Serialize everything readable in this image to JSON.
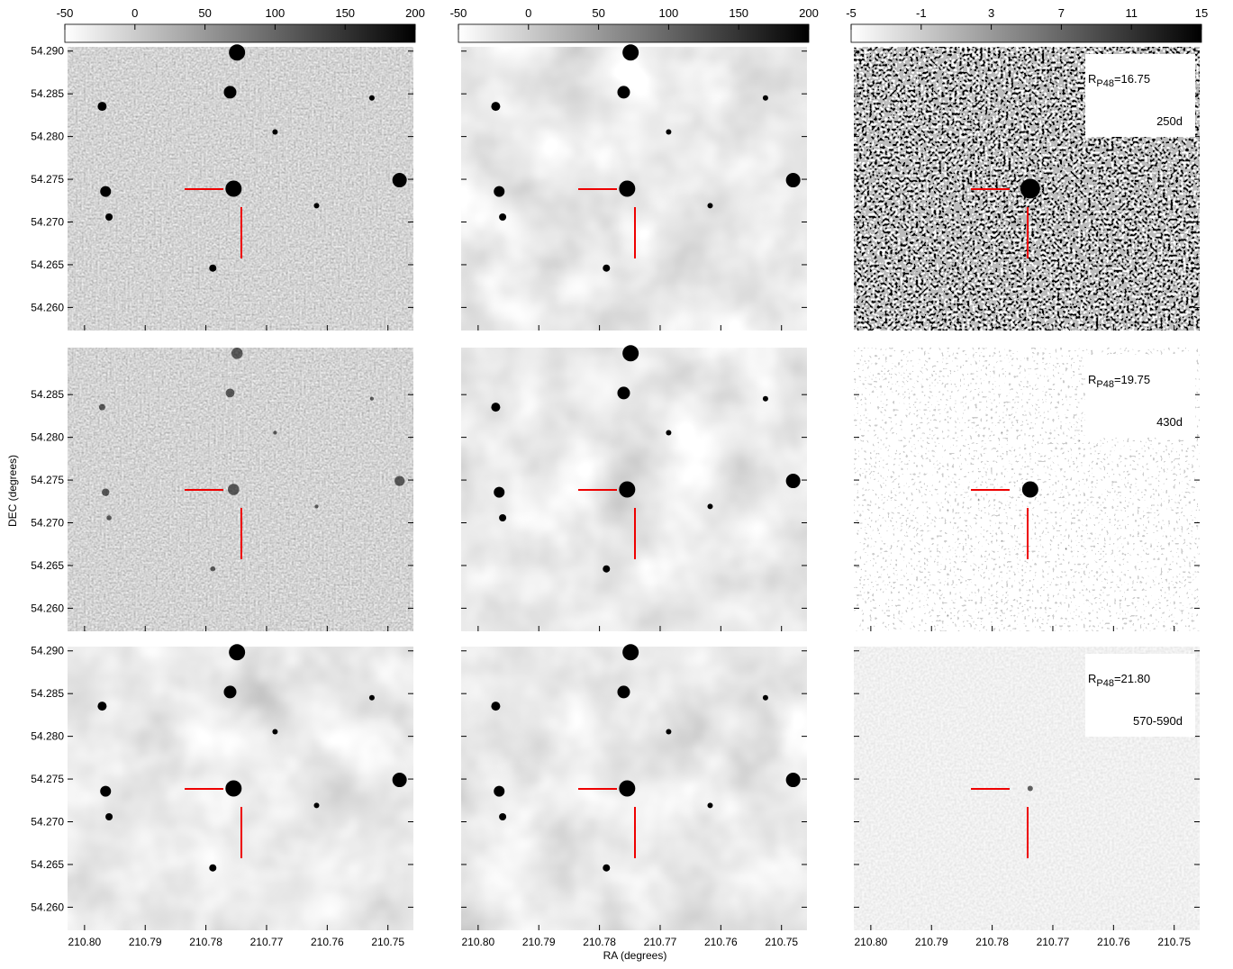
{
  "colorbars": [
    {
      "lim": [
        -50,
        200
      ],
      "ticks": [
        -50,
        0,
        50,
        100,
        150,
        200
      ]
    },
    {
      "lim": [
        -50,
        200
      ],
      "ticks": [
        -50,
        0,
        50,
        100,
        150,
        200
      ]
    },
    {
      "lim": [
        -5,
        15
      ],
      "ticks": [
        -5,
        -1,
        3,
        7,
        11,
        15
      ]
    }
  ],
  "ra_axis": {
    "label": "RA (degrees)",
    "lim": [
      210.8028,
      210.7458
    ],
    "ticks": [
      {
        "value": 210.8,
        "label": "210.80"
      },
      {
        "value": 210.79,
        "label": "210.79"
      },
      {
        "value": 210.78,
        "label": "210.78"
      },
      {
        "value": 210.77,
        "label": "210.77"
      },
      {
        "value": 210.76,
        "label": "210.76"
      },
      {
        "value": 210.75,
        "label": "210.75"
      }
    ]
  },
  "dec_axis": {
    "label": "DEC (degrees)",
    "lim": [
      54.2573,
      54.2905
    ]
  },
  "rows": [
    {
      "dec_ticks": [
        {
          "value": 54.29,
          "label": "54.290"
        },
        54.285,
        {
          "value": 54.28,
          "label": "54.280"
        },
        54.275,
        {
          "value": 54.27,
          "label": "54.270"
        },
        54.265,
        {
          "value": 54.26,
          "label": "54.260"
        }
      ],
      "annotation": {
        "symbol": "R",
        "subscript": "P48",
        "value": "=16.75",
        "epoch": "250d"
      }
    },
    {
      "dec_ticks": [
        54.285,
        {
          "value": 54.28,
          "label": "54.280"
        },
        54.275,
        {
          "value": 54.27,
          "label": "54.270"
        },
        54.265,
        {
          "value": 54.26,
          "label": "54.260"
        }
      ],
      "annotation": {
        "symbol": "R",
        "subscript": "P48",
        "value": "=19.75",
        "epoch": "430d"
      }
    },
    {
      "dec_ticks": [
        {
          "value": 54.29,
          "label": "54.290"
        },
        54.285,
        {
          "value": 54.28,
          "label": "54.280"
        },
        54.275,
        {
          "value": 54.27,
          "label": "54.270"
        },
        54.265,
        {
          "value": 54.26,
          "label": "54.260"
        }
      ],
      "annotation": {
        "symbol": "R",
        "subscript": "P48",
        "value": "=21.80",
        "epoch": "570-590d"
      }
    }
  ]
}
